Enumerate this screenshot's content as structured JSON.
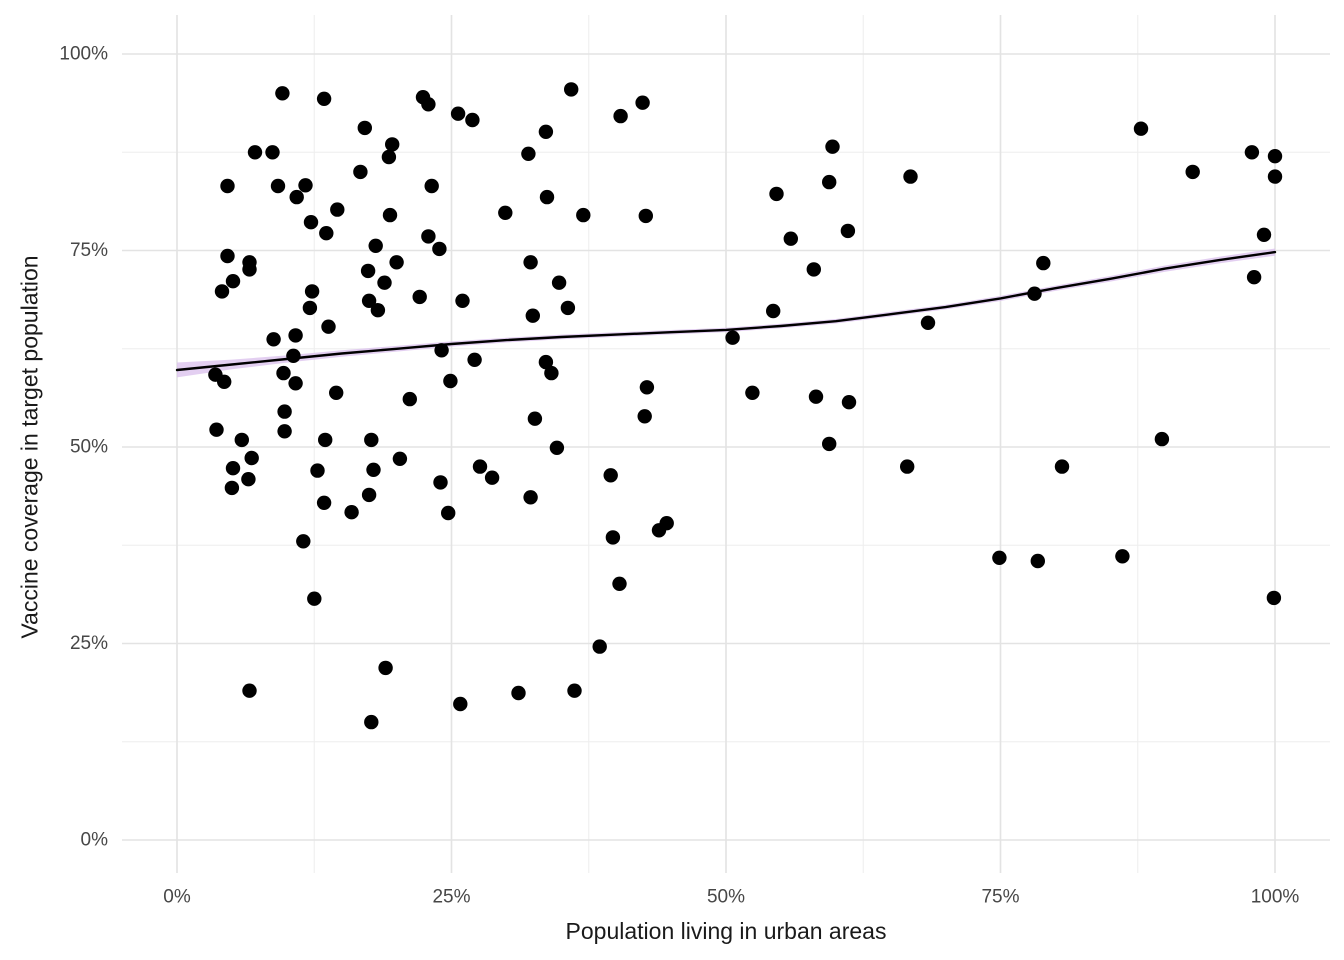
{
  "figure": {
    "background": "#ffffff"
  },
  "chart_data": {
    "type": "scatter",
    "title": "",
    "xlabel": "Population living in urban areas",
    "ylabel": "Vaccine coverage in target population",
    "legend": "none",
    "grid": "on",
    "xlim": [
      0,
      100
    ],
    "ylim": [
      0,
      100
    ],
    "x_axis": {
      "ticks": [
        {
          "value": 0,
          "label": "0%"
        },
        {
          "value": 25,
          "label": "25%"
        },
        {
          "value": 50,
          "label": "50%"
        },
        {
          "value": 75,
          "label": "75%"
        },
        {
          "value": 100,
          "label": "100%"
        }
      ],
      "minor_gridlines": [
        12.5,
        37.5,
        62.5,
        87.5
      ]
    },
    "y_axis": {
      "ticks": [
        {
          "value": 0,
          "label": "0%"
        },
        {
          "value": 25,
          "label": "25%"
        },
        {
          "value": 50,
          "label": "50%"
        },
        {
          "value": 75,
          "label": "75%"
        },
        {
          "value": 100,
          "label": "100%"
        }
      ],
      "minor_gridlines": [
        12.5,
        37.5,
        62.5,
        87.5
      ]
    },
    "points": [
      [
        9.6,
        95.0
      ],
      [
        13.4,
        94.3
      ],
      [
        22.4,
        94.5
      ],
      [
        22.9,
        93.6
      ],
      [
        25.6,
        92.4
      ],
      [
        26.9,
        91.6
      ],
      [
        17.1,
        90.6
      ],
      [
        19.6,
        88.5
      ],
      [
        19.3,
        86.9
      ],
      [
        7.1,
        87.5
      ],
      [
        8.7,
        87.5
      ],
      [
        16.7,
        85.0
      ],
      [
        4.6,
        83.2
      ],
      [
        9.2,
        83.2
      ],
      [
        11.7,
        83.3
      ],
      [
        10.9,
        81.8
      ],
      [
        23.2,
        83.2
      ],
      [
        14.6,
        80.2
      ],
      [
        19.4,
        79.5
      ],
      [
        29.9,
        79.8
      ],
      [
        12.2,
        78.6
      ],
      [
        13.6,
        77.2
      ],
      [
        22.9,
        76.8
      ],
      [
        18.1,
        75.6
      ],
      [
        23.9,
        75.2
      ],
      [
        4.6,
        74.3
      ],
      [
        6.6,
        73.5
      ],
      [
        6.6,
        72.6
      ],
      [
        20.0,
        73.5
      ],
      [
        17.4,
        72.4
      ],
      [
        5.1,
        71.1
      ],
      [
        4.1,
        69.8
      ],
      [
        18.9,
        70.9
      ],
      [
        12.3,
        69.8
      ],
      [
        17.5,
        68.6
      ],
      [
        22.1,
        69.1
      ],
      [
        26.0,
        68.6
      ],
      [
        12.1,
        67.7
      ],
      [
        18.3,
        67.4
      ],
      [
        13.8,
        65.3
      ],
      [
        8.8,
        63.7
      ],
      [
        10.8,
        64.2
      ],
      [
        24.1,
        62.3
      ],
      [
        10.6,
        61.6
      ],
      [
        27.1,
        61.1
      ],
      [
        3.5,
        59.2
      ],
      [
        4.3,
        58.3
      ],
      [
        9.7,
        59.4
      ],
      [
        10.8,
        58.1
      ],
      [
        24.9,
        58.4
      ],
      [
        14.5,
        56.9
      ],
      [
        21.2,
        56.1
      ],
      [
        9.8,
        54.5
      ],
      [
        3.6,
        52.2
      ],
      [
        9.8,
        52.0
      ],
      [
        5.9,
        50.9
      ],
      [
        13.5,
        50.9
      ],
      [
        17.7,
        50.9
      ],
      [
        32.0,
        87.3
      ],
      [
        32.2,
        73.5
      ],
      [
        32.4,
        66.7
      ],
      [
        32.6,
        53.6
      ],
      [
        6.8,
        48.6
      ],
      [
        35.9,
        95.5
      ],
      [
        42.4,
        93.8
      ],
      [
        40.4,
        92.1
      ],
      [
        33.6,
        90.1
      ],
      [
        59.7,
        88.2
      ],
      [
        59.4,
        83.7
      ],
      [
        66.8,
        84.4
      ],
      [
        33.7,
        81.8
      ],
      [
        54.6,
        82.2
      ],
      [
        37.0,
        79.5
      ],
      [
        42.7,
        79.4
      ],
      [
        55.9,
        76.5
      ],
      [
        61.1,
        77.5
      ],
      [
        34.8,
        70.9
      ],
      [
        58.0,
        72.6
      ],
      [
        35.6,
        67.7
      ],
      [
        54.3,
        67.3
      ],
      [
        50.6,
        63.9
      ],
      [
        33.6,
        60.8
      ],
      [
        34.1,
        59.4
      ],
      [
        42.8,
        57.6
      ],
      [
        52.4,
        56.9
      ],
      [
        58.2,
        56.4
      ],
      [
        42.6,
        53.9
      ],
      [
        61.2,
        55.7
      ],
      [
        34.6,
        49.9
      ],
      [
        59.4,
        50.4
      ],
      [
        68.4,
        65.8
      ],
      [
        87.8,
        90.5
      ],
      [
        97.9,
        87.5
      ],
      [
        100,
        87.0
      ],
      [
        92.5,
        85.0
      ],
      [
        100,
        84.4
      ],
      [
        99.0,
        77.0
      ],
      [
        78.9,
        73.4
      ],
      [
        78.1,
        69.5
      ],
      [
        98.1,
        71.6
      ],
      [
        89.7,
        51.0
      ],
      [
        5.1,
        47.3
      ],
      [
        6.5,
        45.9
      ],
      [
        5.0,
        44.8
      ],
      [
        12.8,
        47.0
      ],
      [
        13.4,
        42.9
      ],
      [
        15.9,
        41.7
      ],
      [
        17.9,
        47.1
      ],
      [
        17.5,
        43.9
      ],
      [
        20.3,
        48.5
      ],
      [
        24.0,
        45.5
      ],
      [
        24.7,
        41.6
      ],
      [
        27.6,
        47.5
      ],
      [
        28.7,
        46.1
      ],
      [
        11.5,
        38.0
      ],
      [
        12.5,
        30.7
      ],
      [
        19.0,
        21.9
      ],
      [
        6.6,
        19.0
      ],
      [
        17.7,
        15.0
      ],
      [
        25.8,
        17.3
      ],
      [
        31.1,
        18.7
      ],
      [
        39.5,
        46.4
      ],
      [
        32.2,
        43.6
      ],
      [
        43.9,
        39.4
      ],
      [
        44.6,
        40.3
      ],
      [
        39.7,
        38.5
      ],
      [
        40.3,
        32.6
      ],
      [
        38.5,
        24.6
      ],
      [
        36.2,
        19.0
      ],
      [
        66.5,
        47.5
      ],
      [
        80.6,
        47.5
      ],
      [
        74.9,
        35.9
      ],
      [
        78.4,
        35.5
      ],
      [
        86.1,
        36.1
      ],
      [
        99.9,
        30.8
      ]
    ],
    "smooth_line": {
      "points": [
        [
          0,
          59.8
        ],
        [
          5,
          60.5
        ],
        [
          10,
          61.2
        ],
        [
          15,
          61.9
        ],
        [
          20,
          62.5
        ],
        [
          25,
          63.1
        ],
        [
          30,
          63.6
        ],
        [
          35,
          64.0
        ],
        [
          40,
          64.3
        ],
        [
          45,
          64.6
        ],
        [
          50,
          64.9
        ],
        [
          55,
          65.4
        ],
        [
          60,
          66.0
        ],
        [
          65,
          66.9
        ],
        [
          70,
          67.8
        ],
        [
          75,
          68.9
        ],
        [
          80,
          70.2
        ],
        [
          85,
          71.4
        ],
        [
          90,
          72.7
        ],
        [
          95,
          73.8
        ],
        [
          100,
          74.8
        ]
      ]
    },
    "ci_band": {
      "halfwidth_pct": [
        [
          0,
          0.95
        ],
        [
          5,
          0.62
        ],
        [
          10,
          0.46
        ],
        [
          20,
          0.36
        ],
        [
          30,
          0.3
        ],
        [
          50,
          0.28
        ],
        [
          70,
          0.3
        ],
        [
          85,
          0.36
        ],
        [
          100,
          0.46
        ]
      ]
    },
    "colors": {
      "point": "#000000",
      "line": "#000000",
      "band": "#d9bfec",
      "grid_major": "#e3e3e3",
      "grid_minor": "#eeeeee",
      "tick_text": "#474747",
      "axis_title": "#1a1a1a",
      "background": "#ffffff"
    }
  }
}
